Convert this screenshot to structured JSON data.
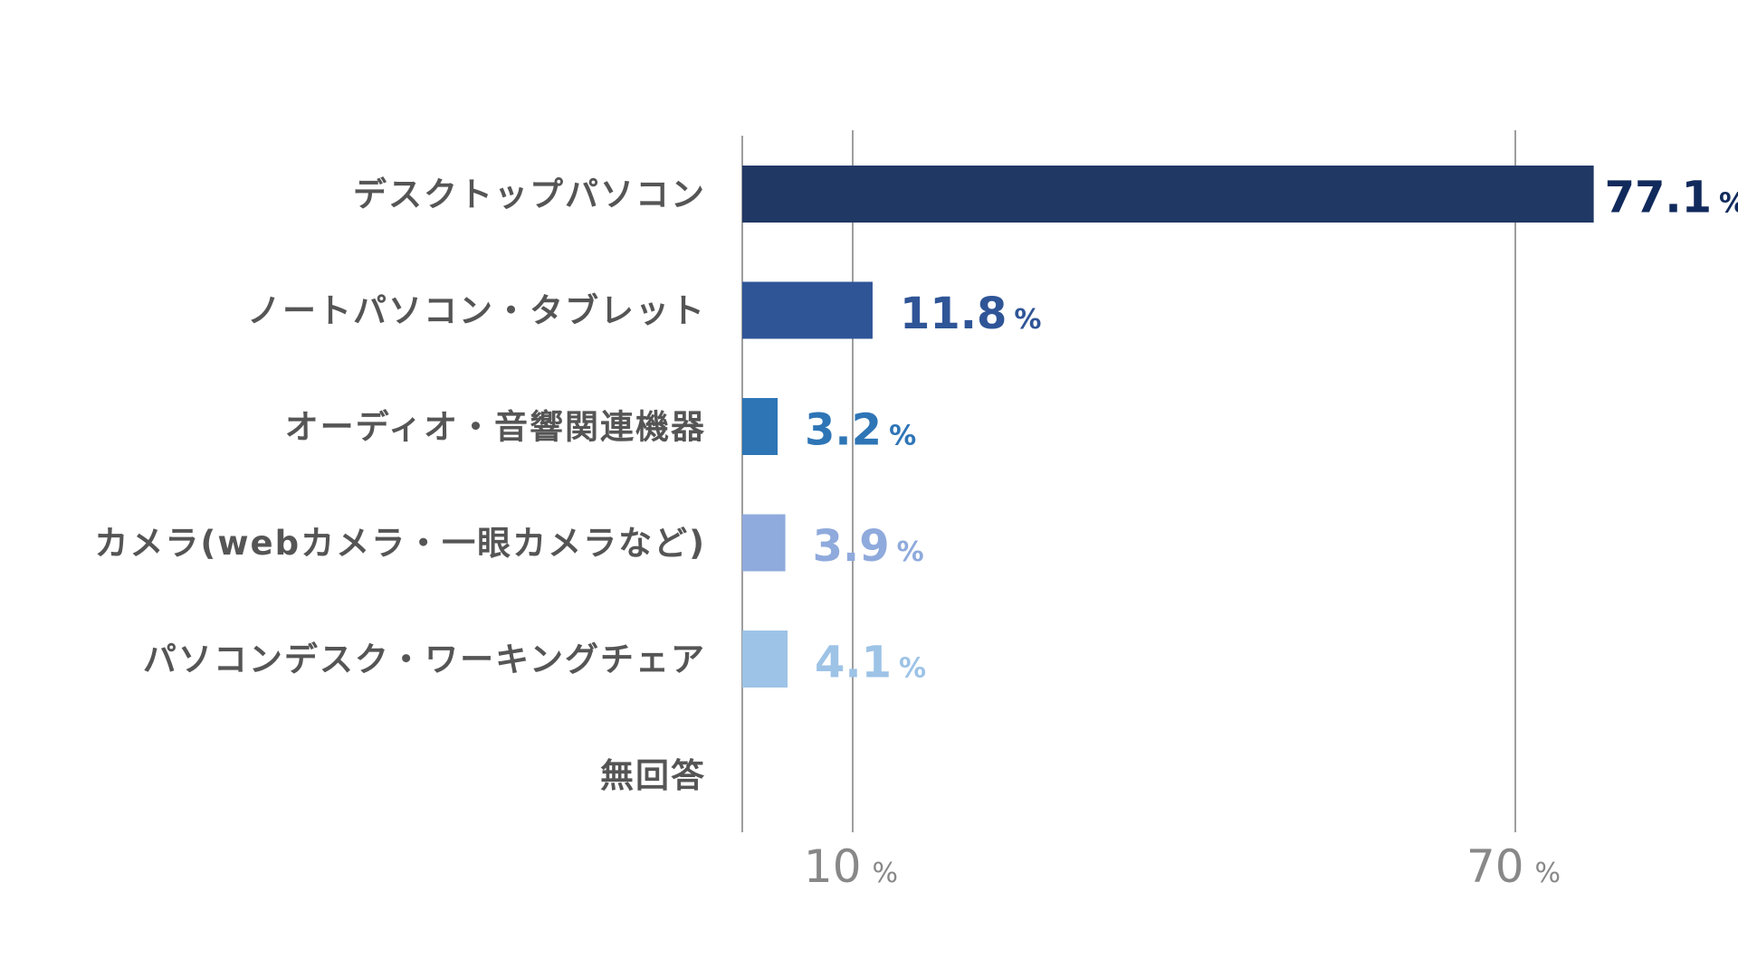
{
  "chart_data": {
    "type": "bar",
    "orientation": "horizontal",
    "categories": [
      "デスクトップパソコン",
      "ノートパソコン・タブレット",
      "オーディオ・音響関連機器",
      "カメラ(webカメラ・一眼カメラなど)",
      "パソコンデスク・ワーキングチェア",
      "無回答"
    ],
    "values": [
      77.1,
      11.8,
      3.2,
      3.9,
      4.1,
      0
    ],
    "value_labels": [
      "77.1",
      "11.8",
      "3.2",
      "3.9",
      "4.1",
      ""
    ],
    "unit": "%",
    "bar_colors": [
      "#203864",
      "#2F5597",
      "#2E75B6",
      "#8FAADC",
      "#9DC3E6",
      "#9DC3E6"
    ],
    "label_colors": [
      "#112A5C",
      "#2F5597",
      "#2E75B6",
      "#8FAADC",
      "#9DC3E6",
      "#9DC3E6"
    ],
    "x_ticks": [
      {
        "value": 10,
        "label": "10",
        "unit": "%"
      },
      {
        "value": 70,
        "label": "70",
        "unit": "%"
      }
    ],
    "xlim": [
      0,
      80
    ],
    "grid": true,
    "legend": "none"
  }
}
